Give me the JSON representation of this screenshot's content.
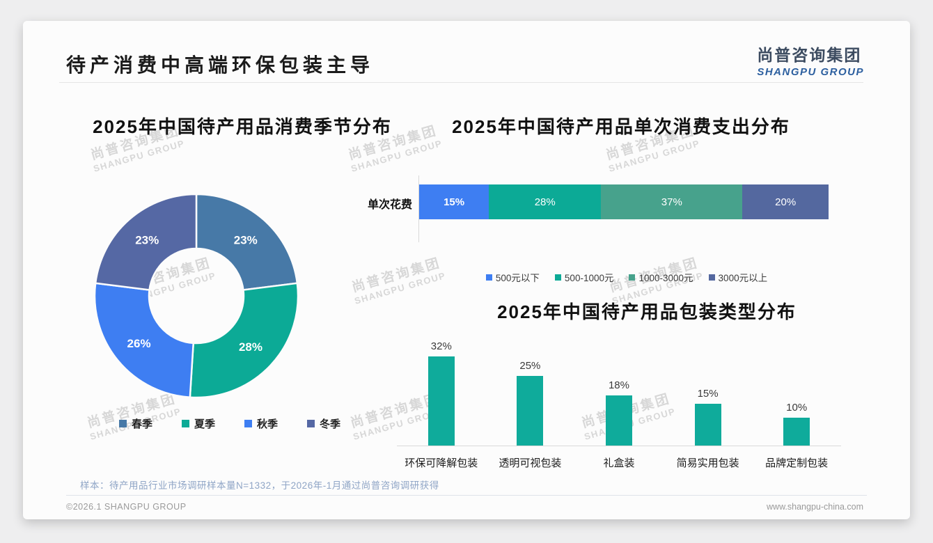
{
  "page": {
    "title": "待产消费中高端环保包装主导",
    "logo": {
      "cn": "尚普咨询集团",
      "en": "SHANGPU GROUP"
    },
    "watermark": {
      "line1": "尚普咨询集团",
      "line2": "SHANGPU GROUP"
    },
    "footer": {
      "sample_note": "样本：待产用品行业市场调研样本量N=1332，于2026年-1月通过尚普咨询调研获得",
      "copyright": "©2026.1 SHANGPU GROUP",
      "website": "www.shangpu-china.com"
    }
  },
  "chart_data": [
    {
      "type": "pie",
      "variant": "donut",
      "title": "2025年中国待产用品消费季节分布",
      "categories": [
        "春季",
        "夏季",
        "秋季",
        "冬季"
      ],
      "values": [
        23,
        28,
        26,
        23
      ],
      "value_labels": [
        "23%",
        "28%",
        "26%",
        "23%"
      ],
      "colors": [
        "#4779a7",
        "#0caa96",
        "#3e7ef2",
        "#5568a4"
      ],
      "start_angle_deg": 0,
      "direction": "clockwise",
      "legend_position": "bottom"
    },
    {
      "type": "bar",
      "variant": "stacked-horizontal",
      "title": "2025年中国待产用品单次消费支出分布",
      "row_label": "单次花费",
      "segments": [
        {
          "label": "500元以下",
          "value": 15,
          "text": "15%",
          "color": "#3e7ef2"
        },
        {
          "label": "500-1000元",
          "value": 28,
          "text": "28%",
          "color": "#0caa96"
        },
        {
          "label": "1000-3000元",
          "value": 37,
          "text": "37%",
          "color": "#47a28c"
        },
        {
          "label": "3000元以上",
          "value": 20,
          "text": "20%",
          "color": "#54689f"
        }
      ],
      "xlim": [
        0,
        100
      ],
      "legend_position": "bottom"
    },
    {
      "type": "bar",
      "variant": "vertical",
      "title": "2025年中国待产用品包装类型分布",
      "categories": [
        "环保可降解包装",
        "透明可视包装",
        "礼盒装",
        "简易实用包装",
        "品牌定制包装"
      ],
      "values": [
        32,
        25,
        18,
        15,
        10
      ],
      "value_labels": [
        "32%",
        "25%",
        "18%",
        "15%",
        "10%"
      ],
      "bar_color": "#0fab9b",
      "ylim": [
        0,
        35
      ],
      "grid": false
    }
  ]
}
